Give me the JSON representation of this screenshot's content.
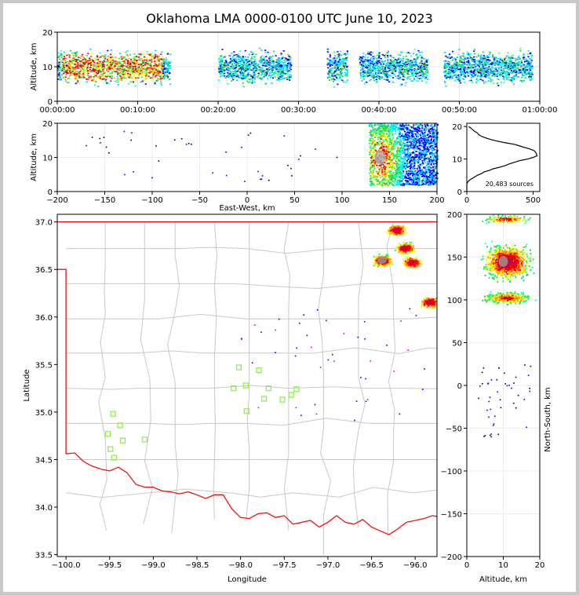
{
  "title": "Oklahoma LMA 0000-0100 UTC June 10, 2023",
  "colors": {
    "border_state": "#ee1111",
    "border_county": "#c8c8c8",
    "station": "#88ee44"
  },
  "chart_data": [
    {
      "id": "time-height",
      "type": "heatmap",
      "ylabel": "Altitude, km",
      "ylim": [
        0,
        20
      ],
      "yticks": [
        "0",
        "10",
        "20"
      ],
      "xticks": [
        "00:00:00",
        "00:10:00",
        "00:20:00",
        "00:30:00",
        "00:40:00",
        "00:50:00",
        "01:00:00"
      ],
      "activity_minutes": [
        [
          0,
          14
        ],
        [
          20,
          29
        ],
        [
          33.5,
          36
        ],
        [
          37.5,
          46
        ],
        [
          48,
          59
        ]
      ],
      "dense_core_minutes": [
        [
          0.5,
          13
        ],
        [
          4,
          11
        ]
      ]
    },
    {
      "id": "ew-height",
      "type": "heatmap",
      "xlabel": "East-West, km",
      "ylabel": "Altitude, km",
      "xlim": [
        -200,
        200
      ],
      "ylim": [
        0,
        20
      ],
      "xticks": [
        "−200",
        "−150",
        "−100",
        "−50",
        "0",
        "50",
        "100",
        "150",
        "200"
      ],
      "yticks": [
        "0",
        "10",
        "20"
      ]
    },
    {
      "id": "source-histogram",
      "type": "line",
      "xlim": [
        0,
        550
      ],
      "ylim": [
        0,
        21
      ],
      "xticks": [
        "0",
        "500"
      ],
      "yticks": [
        "0",
        "10",
        "20"
      ],
      "annotation": "20,483 sources",
      "profile": [
        [
          20,
          15
        ],
        [
          19.5,
          30
        ],
        [
          19,
          45
        ],
        [
          18.5,
          60
        ],
        [
          18,
          80
        ],
        [
          17.5,
          90
        ],
        [
          17,
          110
        ],
        [
          16.5,
          140
        ],
        [
          16,
          180
        ],
        [
          15.5,
          230
        ],
        [
          15,
          290
        ],
        [
          14.5,
          360
        ],
        [
          14,
          400
        ],
        [
          13.5,
          440
        ],
        [
          13,
          480
        ],
        [
          12.5,
          510
        ],
        [
          12,
          520
        ],
        [
          11.5,
          525
        ],
        [
          11,
          530
        ],
        [
          10.5,
          500
        ],
        [
          10,
          460
        ],
        [
          9.5,
          400
        ],
        [
          9,
          360
        ],
        [
          8.5,
          320
        ],
        [
          8,
          290
        ],
        [
          7.5,
          250
        ],
        [
          7,
          200
        ],
        [
          6.5,
          170
        ],
        [
          6,
          130
        ],
        [
          5.5,
          110
        ],
        [
          5,
          80
        ],
        [
          4.5,
          60
        ],
        [
          4,
          40
        ],
        [
          3.5,
          20
        ],
        [
          3,
          8
        ],
        [
          2.5,
          2
        ],
        [
          2,
          0
        ]
      ]
    },
    {
      "id": "plan-view",
      "type": "scatter",
      "xlabel": "Longitude",
      "ylabel": "Latitude",
      "xlim": [
        -100.1,
        -95.75
      ],
      "ylim": [
        33.48,
        37.08
      ],
      "xticks": [
        "−100.0",
        "−99.5",
        "−99.0",
        "−98.5",
        "−98.0",
        "−97.5",
        "−97.0",
        "−96.5",
        "−96.0"
      ],
      "yticks": [
        "33.5",
        "34.0",
        "34.5",
        "35.0",
        "35.5",
        "36.0",
        "36.5",
        "37.0"
      ],
      "stations": [
        [
          -98.02,
          35.47
        ],
        [
          -97.79,
          35.44
        ],
        [
          -98.08,
          35.25
        ],
        [
          -97.94,
          35.28
        ],
        [
          -97.68,
          35.25
        ],
        [
          -97.36,
          35.24
        ],
        [
          -97.42,
          35.18
        ],
        [
          -97.52,
          35.13
        ],
        [
          -97.73,
          35.14
        ],
        [
          -97.93,
          35.01
        ],
        [
          -99.46,
          34.98
        ],
        [
          -99.38,
          34.86
        ],
        [
          -99.52,
          34.77
        ],
        [
          -99.35,
          34.7
        ],
        [
          -99.1,
          34.71
        ],
        [
          -99.49,
          34.61
        ],
        [
          -99.45,
          34.52
        ]
      ],
      "storm_cores": [
        [
          -96.38,
          36.6
        ],
        [
          -96.12,
          36.73
        ],
        [
          -96.04,
          36.58
        ],
        [
          -95.84,
          36.16
        ],
        [
          -96.22,
          36.92
        ]
      ]
    },
    {
      "id": "ns-height",
      "type": "heatmap",
      "xlabel": "Altitude, km",
      "ylabel": "North-South, km",
      "xlim": [
        0,
        20
      ],
      "ylim": [
        -200,
        200
      ],
      "xticks": [
        "0",
        "10",
        "20"
      ],
      "yticks": [
        "−200",
        "−150",
        "−100",
        "−50",
        "0",
        "50",
        "100",
        "150",
        "200"
      ]
    }
  ]
}
